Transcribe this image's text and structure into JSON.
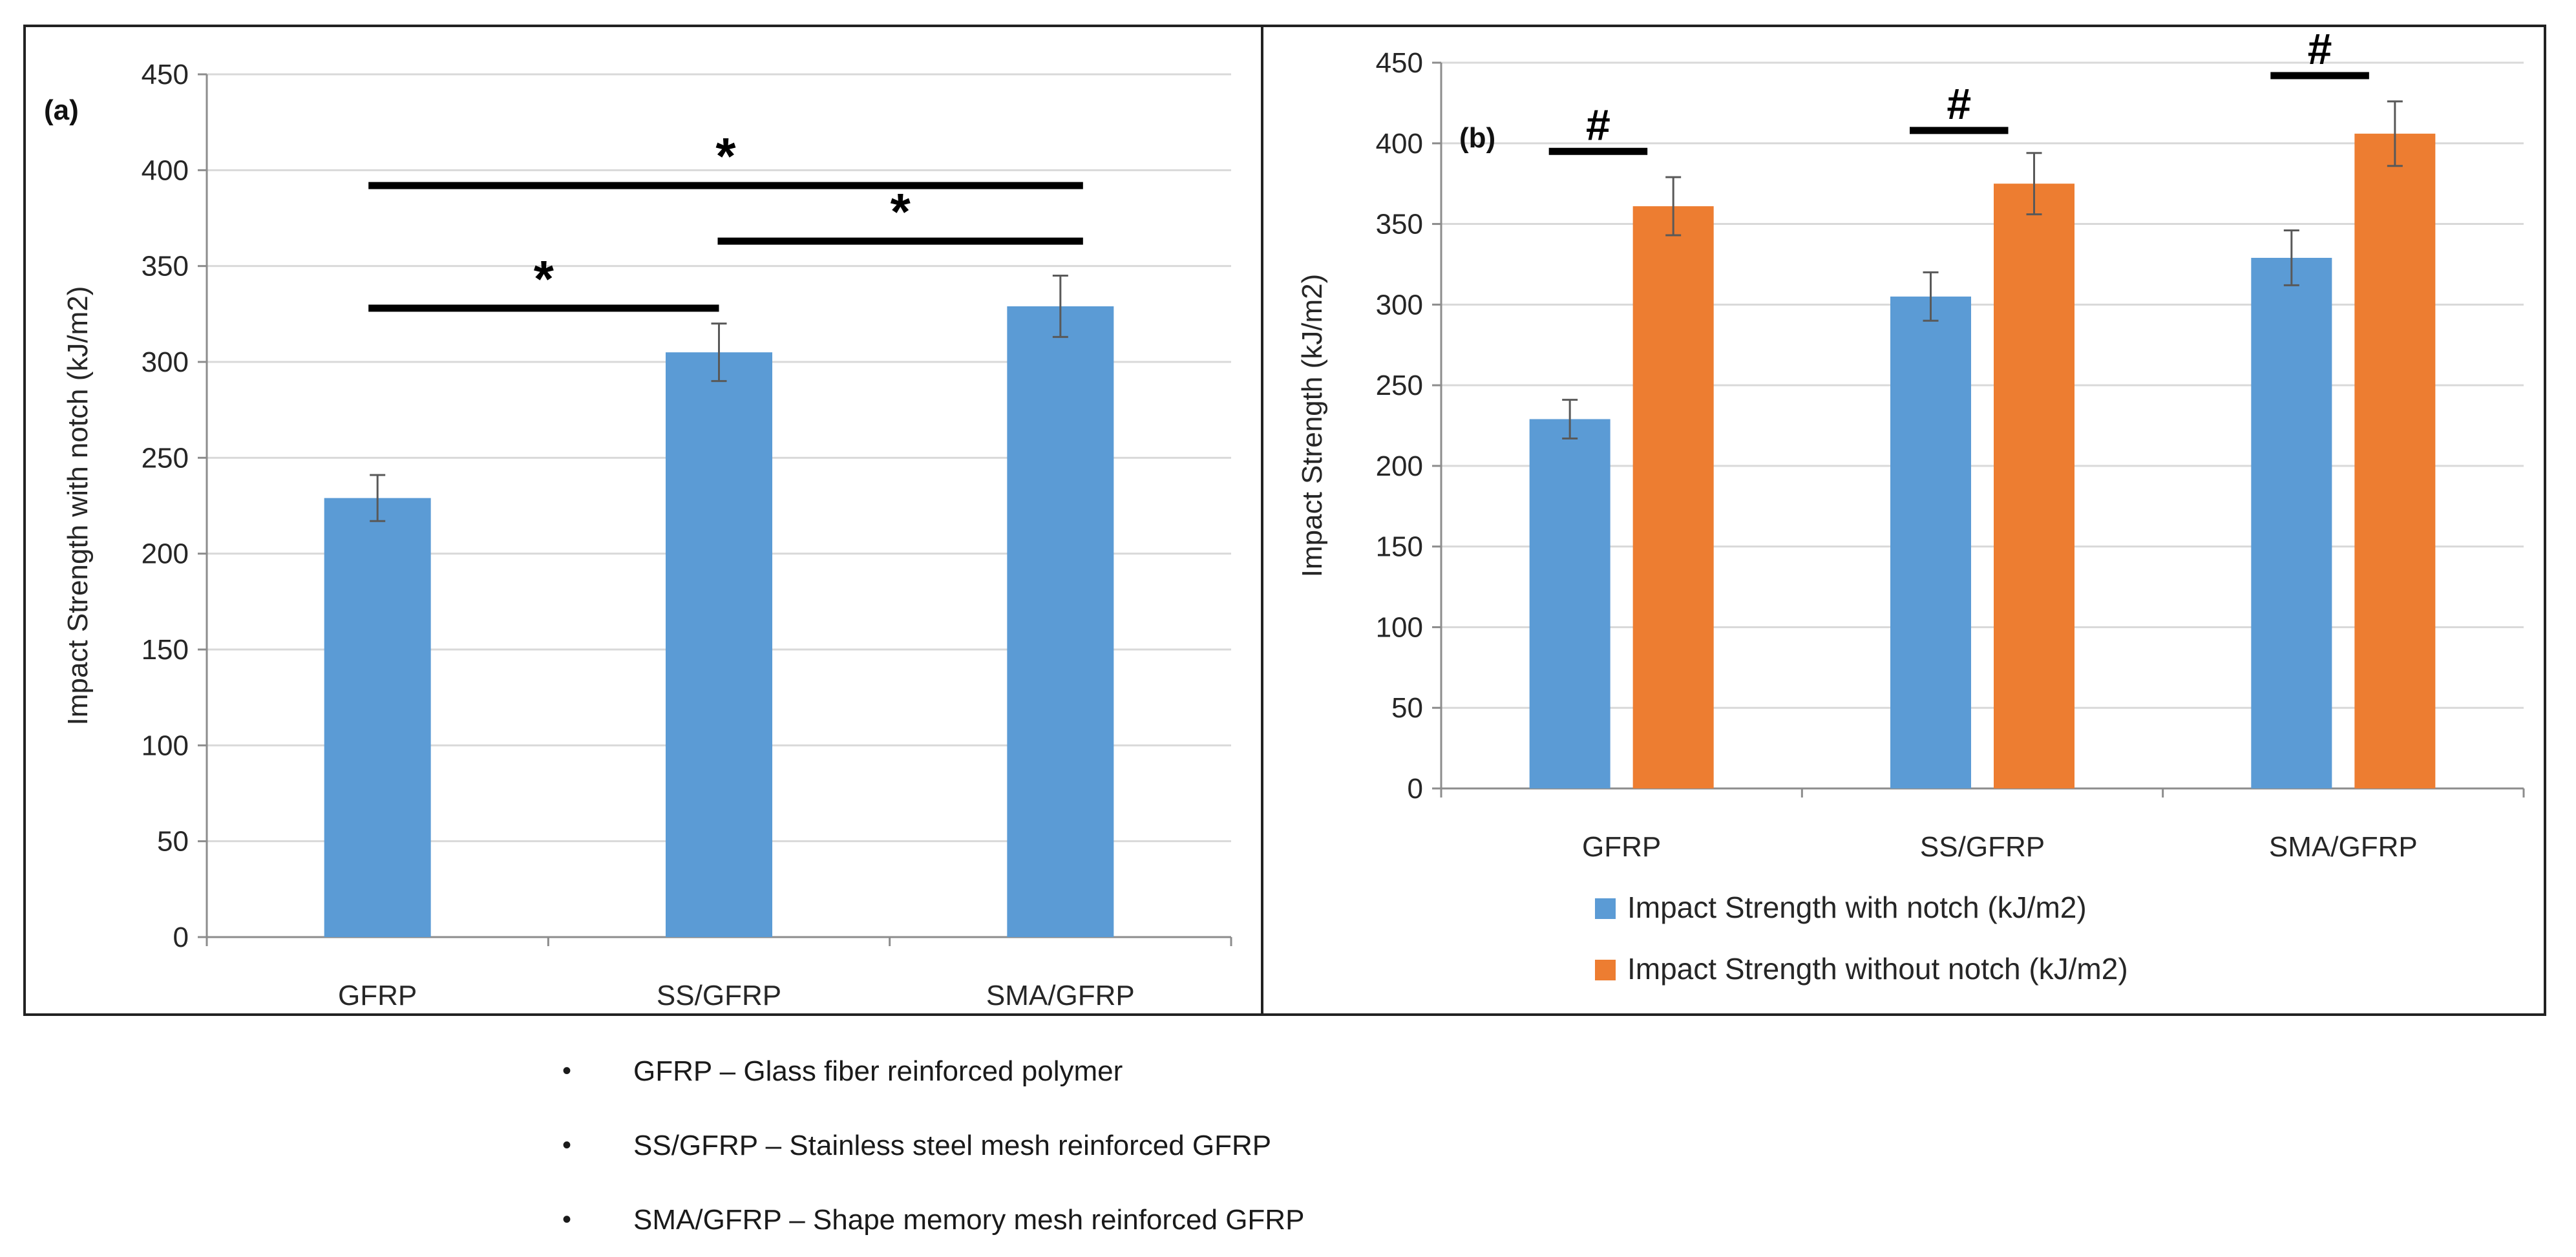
{
  "chart_data": [
    {
      "type": "bar",
      "panel_label": "(a)",
      "categories": [
        "GFRP",
        "SS/GFRP",
        "SMA/GFRP"
      ],
      "series": [
        {
          "name": "Impact Strength with notch (kJ/m2)",
          "color": "#5b9bd5",
          "values": [
            229,
            305,
            329
          ],
          "errors": [
            12,
            15,
            16
          ]
        }
      ],
      "ylabel": "Impact Strength with notch (kJ/m2)",
      "xlabel": "",
      "ylim": [
        0,
        450
      ],
      "yticks": [
        "0",
        "50",
        "100",
        "150",
        "200",
        "250",
        "300",
        "350",
        "400",
        "450"
      ],
      "grid": true,
      "significance": [
        {
          "from": "GFRP",
          "to": "SS/GFRP",
          "level": 328,
          "symbol": "*"
        },
        {
          "from": "SS/GFRP",
          "to": "SMA/GFRP",
          "level": 363,
          "symbol": "*"
        },
        {
          "from": "GFRP",
          "to": "SMA/GFRP",
          "level": 392,
          "symbol": "*"
        }
      ]
    },
    {
      "type": "bar",
      "panel_label": "(b)",
      "categories": [
        "GFRP",
        "SS/GFRP",
        "SMA/GFRP"
      ],
      "series": [
        {
          "name": "Impact Strength with notch (kJ/m2)",
          "color": "#5b9bd5",
          "values": [
            229,
            305,
            329
          ],
          "errors": [
            12,
            15,
            17
          ]
        },
        {
          "name": "Impact Strength without notch (kJ/m2)",
          "color": "#ed7d31",
          "values": [
            361,
            375,
            406
          ],
          "errors": [
            18,
            19,
            20
          ]
        }
      ],
      "ylabel": "Impact Strength (kJ/m2)",
      "xlabel": "",
      "ylim": [
        0,
        450
      ],
      "yticks": [
        "0",
        "50",
        "100",
        "150",
        "200",
        "250",
        "300",
        "350",
        "400",
        "450"
      ],
      "grid": true,
      "legend_position": "bottom",
      "significance": [
        {
          "category": "GFRP",
          "level": 395,
          "symbol": "#"
        },
        {
          "category": "SS/GFRP",
          "level": 408,
          "symbol": "#"
        },
        {
          "category": "SMA/GFRP",
          "level": 442,
          "symbol": "#"
        }
      ]
    }
  ],
  "footnotes": [
    {
      "bullet": "•",
      "text": "GFRP  –  Glass fiber reinforced polymer"
    },
    {
      "bullet": "•",
      "text": "SS/GFRP – Stainless steel mesh reinforced GFRP"
    },
    {
      "bullet": "•",
      "text": "SMA/GFRP – Shape memory mesh reinforced GFRP"
    }
  ]
}
